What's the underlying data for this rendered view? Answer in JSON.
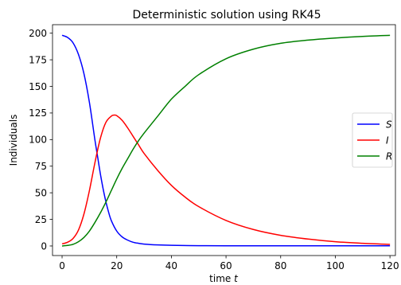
{
  "chart_data": {
    "type": "line",
    "title": "Deterministic solution using RK45",
    "xlabel": "time t",
    "xlabel_main": "time ",
    "xlabel_var": "t",
    "ylabel": "Individuals",
    "xlim": [
      -3.5,
      122
    ],
    "ylim": [
      -9,
      208
    ],
    "xticks": [
      0,
      20,
      40,
      60,
      80,
      100,
      120
    ],
    "yticks": [
      0,
      25,
      50,
      75,
      100,
      125,
      150,
      175,
      200
    ],
    "grid": false,
    "legend_position": "center-right",
    "series": [
      {
        "name": "S",
        "color": "#0000ff",
        "x": [
          0,
          2,
          4,
          6,
          8,
          10,
          12,
          13,
          14,
          15,
          16,
          17,
          18,
          20,
          22,
          24,
          26,
          28,
          30,
          35,
          40,
          50,
          60,
          80,
          100,
          120
        ],
        "y": [
          198,
          196,
          191,
          180,
          162,
          135,
          100,
          84,
          68,
          54,
          42,
          32,
          24,
          14,
          8.5,
          5.5,
          3.5,
          2.5,
          1.8,
          1.0,
          0.6,
          0.3,
          0.2,
          0.2,
          0.2,
          0.2
        ]
      },
      {
        "name": "I",
        "color": "#ff0000",
        "x": [
          0,
          2,
          4,
          6,
          8,
          10,
          12,
          14,
          16,
          18,
          19,
          20,
          22,
          24,
          26,
          28,
          30,
          35,
          40,
          45,
          50,
          60,
          70,
          80,
          90,
          100,
          110,
          120
        ],
        "y": [
          2,
          3.5,
          7,
          15,
          30,
          52,
          78,
          101,
          116,
          122,
          123,
          122.5,
          118,
          111,
          103,
          95,
          87,
          71,
          57,
          46,
          37,
          24,
          15.5,
          10,
          6.5,
          4,
          2.5,
          1.5
        ]
      },
      {
        "name": "R",
        "color": "#008000",
        "x": [
          0,
          2,
          4,
          6,
          8,
          10,
          12,
          14,
          16,
          18,
          20,
          22,
          24,
          26,
          28,
          30,
          35,
          40,
          45,
          50,
          60,
          70,
          80,
          90,
          100,
          110,
          120
        ],
        "y": [
          0,
          0.5,
          1.5,
          4,
          8,
          14,
          22,
          31,
          41,
          52,
          63,
          73,
          82,
          91,
          99,
          106,
          122,
          138,
          150,
          161,
          176,
          185,
          190.5,
          193.5,
          195.5,
          197,
          198
        ]
      }
    ]
  }
}
